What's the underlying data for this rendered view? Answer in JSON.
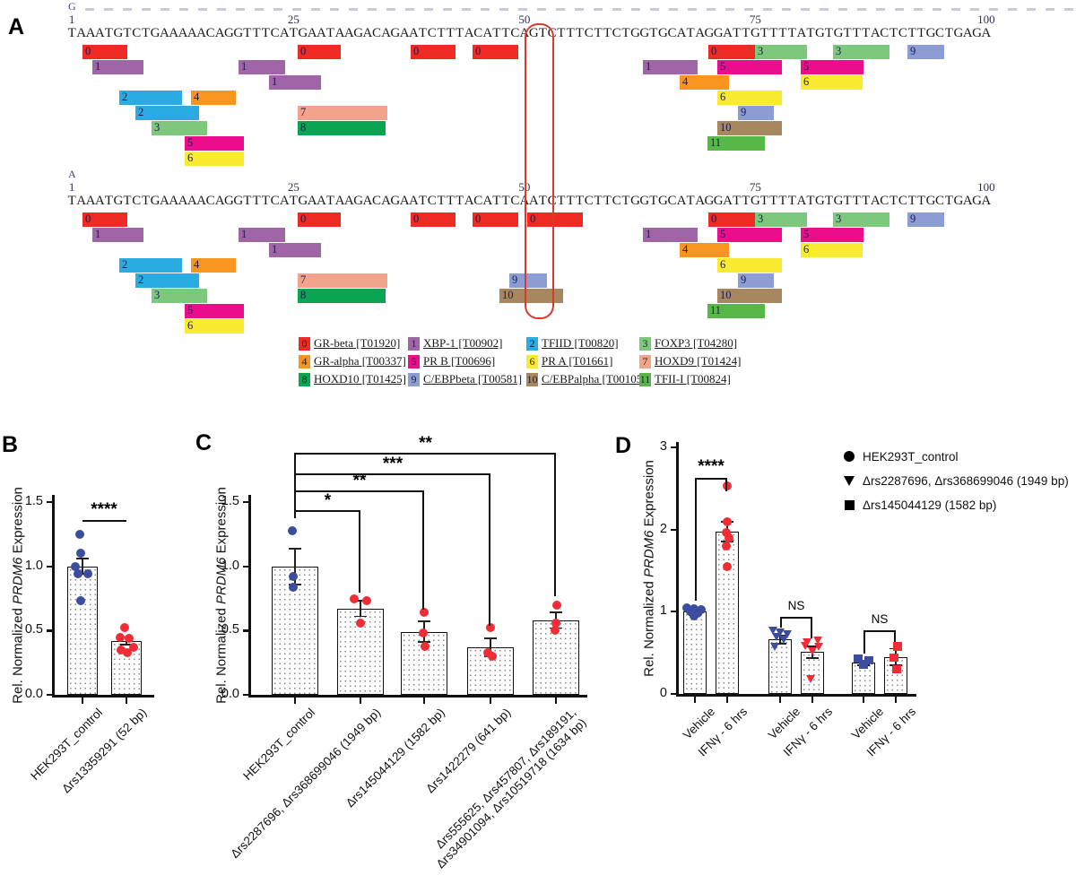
{
  "point_colors": {
    "blue": "#3c4c9f",
    "red": "#ee2d36"
  },
  "panelA": {
    "label": "A",
    "ruler_dash_color": "#c9c9dc",
    "ruler_ticks": [
      "1",
      "25",
      "50",
      "75",
      "100"
    ],
    "ruler_tick_positions": [
      1,
      25,
      50,
      75,
      100
    ],
    "alleles": [
      "G",
      "A"
    ],
    "sequences": {
      "G": "TAAATGTCTGAAAAACAGGTTTCATGAATAAGACAGAATCTTTACATTCAGTCTTTCTTCTGGTGCATAGGATTGTTTTATGTGTTTACTCTTGCTGAGA",
      "A": "TAAATGTCTGAAAAACAGGTTTCATGAATAAGACAGAATCTTTACATTCAATCTTTCTTCTGGTGCATAGGATTGTTTTATGTGTTTACTCTTGCTGAGA"
    },
    "snp_highlight_position": 51,
    "highlight_color": "#d93a2b",
    "tf_colors": {
      "0": "#ed2a24",
      "1": "#9f65a6",
      "2": "#2aace3",
      "3": "#7ec87d",
      "4": "#f89521",
      "5": "#eb0d8c",
      "6": "#f8eb31",
      "7": "#f1a38c",
      "8": "#0aa553",
      "9": "#8c9dd4",
      "10": "#a6875f",
      "11": "#58b847"
    },
    "boxes_common": [
      [
        92,
        50,
        1,
        "0"
      ],
      [
        103,
        57,
        2,
        "1"
      ],
      [
        133,
        70,
        4,
        "2"
      ],
      [
        151,
        71,
        5,
        "2"
      ],
      [
        169,
        62,
        6,
        "3"
      ],
      [
        206,
        66,
        7,
        "5"
      ],
      [
        206,
        66,
        8,
        "6"
      ],
      [
        213,
        50,
        4,
        "4"
      ],
      [
        266,
        52,
        2,
        "1"
      ],
      [
        300,
        58,
        3,
        "1"
      ],
      [
        332,
        48,
        1,
        "0"
      ],
      [
        332,
        100,
        5,
        "7"
      ],
      [
        332,
        98,
        6,
        "8"
      ],
      [
        458,
        50,
        1,
        "0"
      ],
      [
        527,
        51,
        1,
        "0"
      ],
      [
        717,
        61,
        2,
        "1"
      ],
      [
        758,
        55,
        3,
        "4"
      ],
      [
        789,
        64,
        7,
        "11"
      ],
      [
        790,
        52,
        1,
        "0"
      ],
      [
        800,
        72,
        4,
        "6"
      ],
      [
        800,
        72,
        6,
        "10"
      ],
      [
        800,
        72,
        2,
        "5"
      ],
      [
        823,
        40,
        5,
        "9"
      ],
      [
        842,
        58,
        1,
        "3"
      ],
      [
        893,
        70,
        2,
        "5"
      ],
      [
        893,
        69,
        3,
        "6"
      ],
      [
        929,
        63,
        1,
        "3"
      ],
      [
        1012,
        41,
        1,
        "9"
      ]
    ],
    "boxes_a_extra": [
      [
        588,
        62,
        1,
        "0"
      ],
      [
        568,
        42,
        5,
        "9"
      ],
      [
        557,
        71,
        6,
        "10"
      ]
    ],
    "legend": [
      {
        "num": "0",
        "name": "GR-beta",
        "id": "[T01920]"
      },
      {
        "num": "1",
        "name": "XBP-1",
        "id": "[T00902]"
      },
      {
        "num": "2",
        "name": "TFIID",
        "id": "[T00820]"
      },
      {
        "num": "3",
        "name": "FOXP3",
        "id": "[T04280]"
      },
      {
        "num": "4",
        "name": "GR-alpha",
        "id": "[T00337]"
      },
      {
        "num": "5",
        "name": "PR B",
        "id": "[T00696]"
      },
      {
        "num": "6",
        "name": "PR A",
        "id": "[T01661]"
      },
      {
        "num": "7",
        "name": "HOXD9",
        "id": "[T01424]"
      },
      {
        "num": "8",
        "name": "HOXD10",
        "id": "[T01425]"
      },
      {
        "num": "9",
        "name": "C/EBPbeta",
        "id": "[T00581]"
      },
      {
        "num": "10",
        "name": "C/EBPalpha",
        "id": "[T00105]"
      },
      {
        "num": "11",
        "name": "TFII-I",
        "id": "[T00824]"
      }
    ]
  },
  "panelB": {
    "label": "B",
    "ylabel": {
      "pre": "Rel. Normalized ",
      "italic": "PRDM6",
      "post": " Expression"
    },
    "yticks": [
      "0.0",
      "0.5",
      "1.0",
      "1.5"
    ],
    "sig": "****",
    "chart_data": {
      "type": "bar",
      "categories": [
        "HEK293T_control",
        "Δrs13359291 (52 bp)"
      ],
      "values": [
        1.0,
        0.42
      ],
      "errors": [
        0.06,
        0.03
      ],
      "ylim": [
        0,
        1.5
      ]
    },
    "bars": [
      {
        "label": [
          "HEK293T_control"
        ],
        "value": 1.0,
        "err": 0.06,
        "shape": "circle",
        "point_color": "blue",
        "points": [
          1.25,
          1.1,
          1.0,
          0.94,
          0.94,
          0.73
        ],
        "dx": [
          -3,
          -2,
          -8,
          -5,
          6,
          -2
        ]
      },
      {
        "label": [
          "Δrs13359291 (52 bp)"
        ],
        "value": 0.42,
        "err": 0.03,
        "shape": "circle",
        "point_color": "red",
        "points": [
          0.52,
          0.45,
          0.44,
          0.37,
          0.35,
          0.33
        ],
        "dx": [
          -2,
          -7,
          3,
          8,
          -6,
          1
        ]
      }
    ]
  },
  "panelC": {
    "label": "C",
    "ylabel": {
      "pre": "Rel. Normalized ",
      "italic": "PRDM6",
      "post": " Expression"
    },
    "yticks": [
      "0.0",
      "0.5",
      "1.0",
      "1.5"
    ],
    "chart_data": {
      "type": "bar",
      "categories": [
        "HEK293T_control",
        "Δrs2287696, Δrs368699046 (1949 bp)",
        "Δrs145044129 (1582 bp)",
        "Δrs1422279 (641 bp)",
        "Δrs555625, Δrs457807, Δrs189191, Δrs34901094, Δrs10519718 (1634 bp)"
      ],
      "values": [
        1.0,
        0.67,
        0.49,
        0.37,
        0.58
      ],
      "errors": [
        0.14,
        0.06,
        0.08,
        0.07,
        0.06
      ],
      "ylim": [
        0,
        1.5
      ]
    },
    "bars": [
      {
        "label": [
          "HEK293T_control"
        ],
        "value": 1.0,
        "err": 0.14,
        "shape": "circle",
        "point_color": "blue",
        "points": [
          1.28,
          0.92,
          0.84
        ],
        "dx": [
          -3,
          -2,
          -2
        ]
      },
      {
        "label": [
          "Δrs2287696, Δrs368699046 (1949 bp)"
        ],
        "value": 0.67,
        "err": 0.06,
        "shape": "circle",
        "point_color": "red",
        "points": [
          0.75,
          0.73,
          0.56
        ],
        "dx": [
          -7,
          7,
          0
        ]
      },
      {
        "label": [
          "Δrs145044129 (1582 bp)"
        ],
        "value": 0.49,
        "err": 0.08,
        "shape": "circle",
        "point_color": "red",
        "points": [
          0.64,
          0.48,
          0.38
        ],
        "dx": [
          0,
          -1,
          1
        ]
      },
      {
        "label": [
          "Δrs1422279 (641 bp)"
        ],
        "value": 0.37,
        "err": 0.07,
        "shape": "circle",
        "point_color": "red",
        "points": [
          0.52,
          0.33,
          0.3
        ],
        "dx": [
          0,
          -3,
          2
        ]
      },
      {
        "label": [
          "Δrs555625, Δrs457807, Δrs189191,",
          "Δrs34901094, Δrs10519718 (1634 bp)"
        ],
        "value": 0.58,
        "err": 0.06,
        "shape": "circle",
        "point_color": "red",
        "points": [
          0.7,
          0.56,
          0.5
        ],
        "dx": [
          1,
          0,
          -1
        ]
      }
    ],
    "brackets": [
      {
        "from": 0,
        "to": 1,
        "sig": "*"
      },
      {
        "from": 0,
        "to": 2,
        "sig": "**"
      },
      {
        "from": 0,
        "to": 3,
        "sig": "***"
      },
      {
        "from": 0,
        "to": 4,
        "sig": "**"
      }
    ]
  },
  "panelD": {
    "label": "D",
    "ylabel": {
      "pre": "Rel. Normalized ",
      "italic": "PRDM6",
      "post": " Expression"
    },
    "yticks": [
      "0",
      "1",
      "2",
      "3"
    ],
    "chart_data": {
      "type": "bar",
      "categories": [
        "Vehicle",
        "IFNγ - 6 hrs",
        "Vehicle",
        "IFNγ - 6 hrs",
        "Vehicle",
        "IFNγ - 6 hrs"
      ],
      "series_groups": [
        "HEK293T_control",
        "Δrs2287696, Δrs368699046 (1949 bp)",
        "Δrs145044129 (1582 bp)"
      ],
      "values": [
        1.0,
        1.97,
        0.66,
        0.51,
        0.38,
        0.45
      ],
      "errors": [
        0.04,
        0.12,
        0.05,
        0.07,
        0.03,
        0.1
      ],
      "ylim": [
        0,
        3
      ]
    },
    "bars": [
      {
        "label": [
          "Vehicle"
        ],
        "value": 1.0,
        "err": 0.04,
        "shape": "circle",
        "point_color": "blue",
        "points": [
          1.05,
          1.04,
          1.03,
          1.0,
          0.98,
          0.95
        ],
        "dx": [
          -9,
          -1,
          7,
          -5,
          3,
          -1
        ]
      },
      {
        "label": [
          "IFNγ - 6 hrs"
        ],
        "value": 1.97,
        "err": 0.12,
        "shape": "circle",
        "point_color": "red",
        "points": [
          2.53,
          2.09,
          1.96,
          1.9,
          1.8,
          1.55
        ],
        "dx": [
          0,
          0,
          -1,
          2,
          -1,
          0
        ]
      },
      {
        "label": [
          "Vehicle"
        ],
        "value": 0.66,
        "err": 0.05,
        "shape": "triangle",
        "point_color": "blue",
        "points": [
          0.77,
          0.75,
          0.73,
          0.69,
          0.66,
          0.57
        ],
        "dx": [
          -8,
          0,
          8,
          -4,
          4,
          -6
        ]
      },
      {
        "label": [
          "IFNγ - 6 hrs"
        ],
        "value": 0.51,
        "err": 0.07,
        "shape": "triangle",
        "point_color": "red",
        "points": [
          0.65,
          0.63,
          0.58,
          0.57,
          0.52,
          0.18
        ],
        "dx": [
          6,
          -6,
          -8,
          7,
          0,
          -2
        ]
      },
      {
        "label": [
          "Vehicle"
        ],
        "value": 0.38,
        "err": 0.03,
        "shape": "square",
        "point_color": "blue",
        "points": [
          0.43,
          0.41,
          0.36
        ],
        "dx": [
          -6,
          6,
          0
        ]
      },
      {
        "label": [
          "IFNγ - 6 hrs"
        ],
        "value": 0.45,
        "err": 0.1,
        "shape": "square",
        "point_color": "red",
        "points": [
          0.58,
          0.44,
          0.3
        ],
        "dx": [
          2,
          -2,
          1
        ]
      }
    ],
    "sigs": [
      "****",
      "NS",
      "NS"
    ],
    "legend": [
      {
        "symbol": "circle",
        "label": "HEK293T_control"
      },
      {
        "symbol": "triangle",
        "label": "Δrs2287696, Δrs368699046 (1949 bp)"
      },
      {
        "symbol": "square",
        "label": "Δrs145044129 (1582 bp)"
      }
    ]
  }
}
